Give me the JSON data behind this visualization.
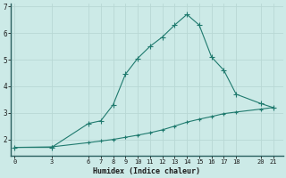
{
  "xlabel": "Humidex (Indice chaleur)",
  "ylabel": "",
  "bg_color": "#cceae7",
  "line_color": "#1f7a6e",
  "grid_color": "#b8d8d4",
  "x_ticks": [
    0,
    3,
    6,
    7,
    8,
    9,
    10,
    11,
    12,
    13,
    14,
    15,
    16,
    17,
    18,
    20,
    21
  ],
  "y_ticks": [
    2,
    3,
    4,
    5,
    6,
    7
  ],
  "line1_x": [
    0,
    3,
    6,
    7,
    8,
    9,
    10,
    11,
    12,
    13,
    14,
    15,
    16,
    17,
    18,
    20,
    21
  ],
  "line1_y": [
    1.7,
    1.7,
    2.6,
    2.7,
    3.3,
    4.45,
    5.05,
    5.5,
    5.85,
    6.3,
    6.7,
    6.3,
    5.1,
    4.6,
    3.7,
    3.35,
    3.2
  ],
  "line2_x": [
    0,
    3,
    6,
    7,
    8,
    9,
    10,
    11,
    12,
    13,
    14,
    15,
    16,
    17,
    18,
    20,
    21
  ],
  "line2_y": [
    1.7,
    1.72,
    1.88,
    1.94,
    2.0,
    2.08,
    2.16,
    2.25,
    2.36,
    2.5,
    2.65,
    2.76,
    2.86,
    2.97,
    3.03,
    3.14,
    3.2
  ],
  "ylim": [
    1.4,
    7.1
  ],
  "xlim": [
    -0.3,
    21.8
  ]
}
